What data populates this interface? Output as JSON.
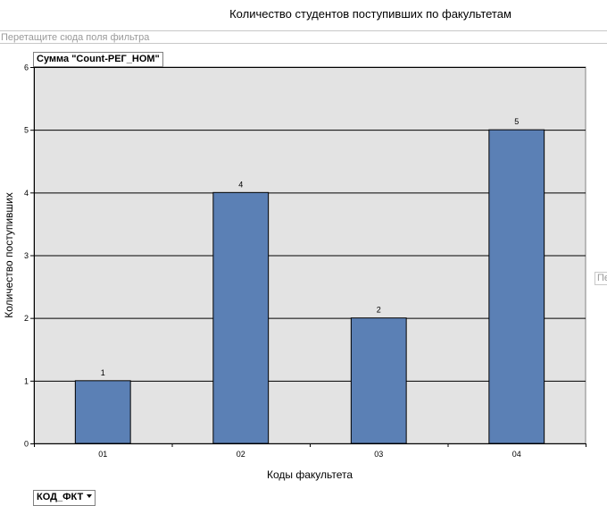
{
  "title": "Количество студентов поступивших по факультетам",
  "filter_area": {
    "placeholder": "Перетащите сюда поля фильтра"
  },
  "series_area": {
    "placeholder": "Пере"
  },
  "data_field": {
    "label": "Сумма \"Count-РЕГ_НОМ\""
  },
  "category_field": {
    "label": "КОД_ФКТ"
  },
  "chart_data": {
    "type": "bar",
    "title": "Количество студентов поступивших по факультетам",
    "xlabel": "Коды факультета",
    "ylabel": "Количество поступивших",
    "categories": [
      "01",
      "02",
      "03",
      "04"
    ],
    "values": [
      1,
      4,
      2,
      5
    ],
    "data_labels": [
      "1",
      "4",
      "2",
      "5"
    ],
    "ylim": [
      0,
      6
    ],
    "yticks": [
      "0",
      "1",
      "2",
      "3",
      "4",
      "5",
      "6"
    ],
    "grid": true,
    "legend": "none",
    "colors": {
      "bar_fill": "#5b80b5",
      "bar_stroke": "#000000",
      "plot_background": "#e3e3e3",
      "gridline": "#000000"
    }
  }
}
